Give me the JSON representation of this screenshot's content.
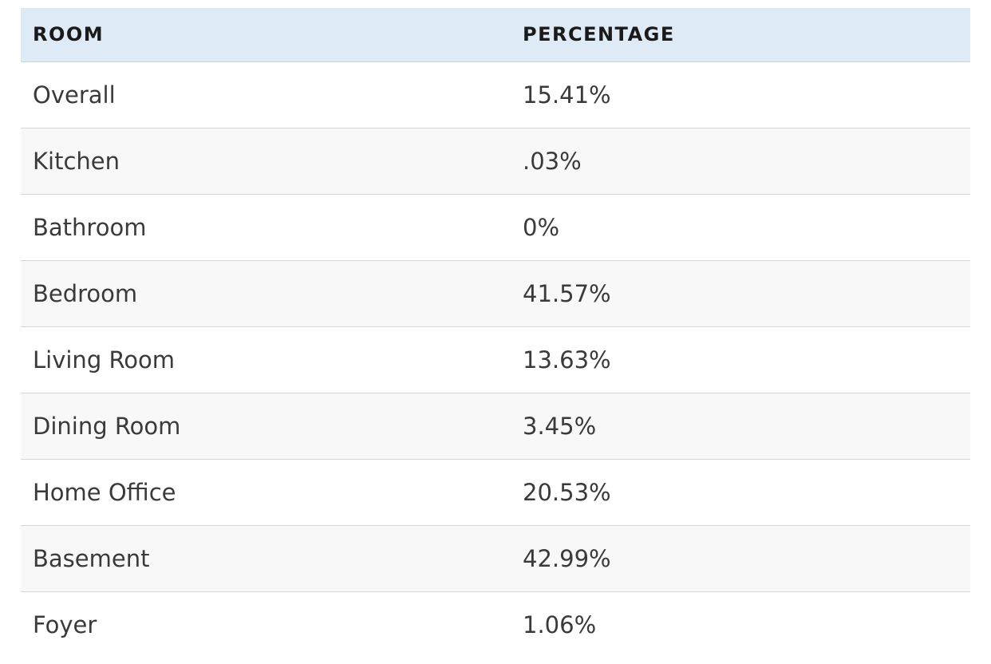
{
  "table": {
    "headers": [
      "ROOM",
      "PERCENTAGE"
    ],
    "rows": [
      {
        "room": "Overall",
        "percentage": "15.41%"
      },
      {
        "room": "Kitchen",
        "percentage": ".03%"
      },
      {
        "room": "Bathroom",
        "percentage": "0%"
      },
      {
        "room": "Bedroom",
        "percentage": "41.57%"
      },
      {
        "room": "Living Room",
        "percentage": "13.63%"
      },
      {
        "room": "Dining Room",
        "percentage": "3.45%"
      },
      {
        "room": "Home Office",
        "percentage": "20.53%"
      },
      {
        "room": "Basement",
        "percentage": "42.99%"
      },
      {
        "room": "Foyer",
        "percentage": "1.06%"
      }
    ]
  },
  "colors": {
    "header_background": "#deebf6",
    "row_alt_background": "#f8f8f8",
    "row_border": "#d6d6d6"
  }
}
